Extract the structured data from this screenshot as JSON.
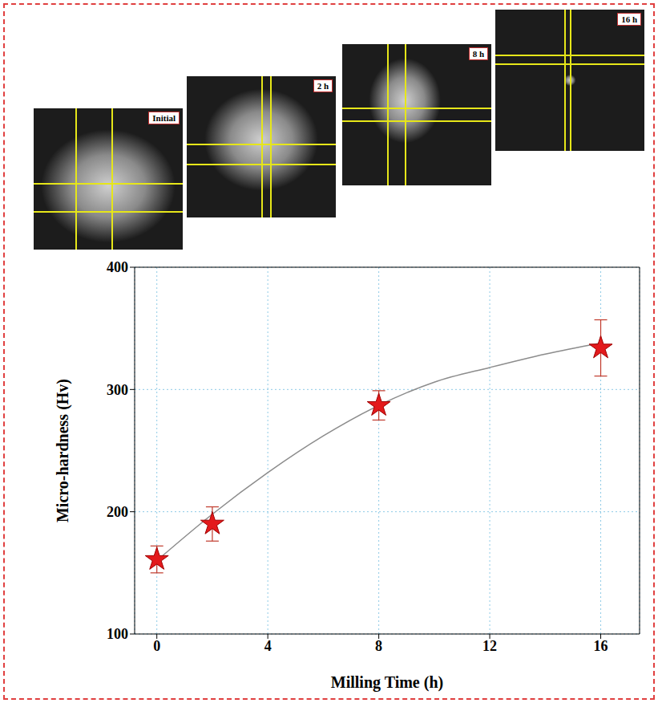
{
  "images": [
    "Initial",
    "2 h",
    "8 h",
    "16 h"
  ],
  "chart_data": {
    "type": "scatter",
    "x_label": "Milling Time (h)",
    "y_label": "Micro-hardness (Hv)",
    "x": [
      0,
      2,
      8,
      16
    ],
    "values": [
      161,
      190,
      287,
      334
    ],
    "errors": [
      11,
      14,
      12,
      23
    ],
    "color": "#e31a1c",
    "marker": "star",
    "fit": {
      "x": [
        0,
        2,
        4,
        6,
        8,
        10,
        12,
        14,
        16
      ],
      "values": [
        160,
        198,
        232,
        262,
        287,
        306,
        318,
        329,
        338
      ],
      "color": "#8c8c8c"
    },
    "xlim": [
      -0.8,
      17.4
    ],
    "xticks": [
      0,
      4,
      8,
      12,
      16
    ],
    "ylim": [
      100,
      400
    ],
    "yticks": [
      100,
      200,
      300,
      400
    ],
    "grid": true
  }
}
